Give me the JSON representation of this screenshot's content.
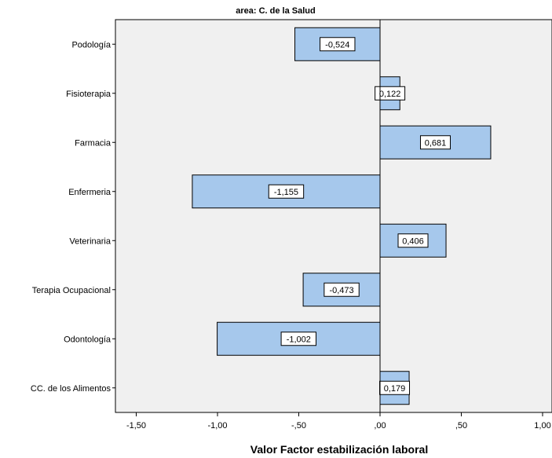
{
  "chart_data": {
    "type": "bar",
    "orientation": "horizontal",
    "title": "area: C. de la Salud",
    "xlabel": "Valor Factor estabilización laboral",
    "ylabel": "",
    "categories": [
      "Podología",
      "Fisioterapia",
      "Farmacia",
      "Enfermeria",
      "Veterinaria",
      "Terapia Ocupacional",
      "Odontología",
      "CC. de los Alimentos"
    ],
    "values": [
      -0.524,
      0.122,
      0.681,
      -1.155,
      0.406,
      -0.473,
      -1.002,
      0.179
    ],
    "value_labels": [
      "-0,524",
      "0,122",
      "0,681",
      "-1,155",
      "0,406",
      "-0,473",
      "-1,002",
      "0,179"
    ],
    "xlim": [
      -1.63,
      1.05
    ],
    "xticks": [
      -1.5,
      -1.0,
      -0.5,
      0.0,
      0.5,
      1.0
    ],
    "xtick_labels": [
      "-1,50",
      "-1,00",
      "-,50",
      ",00",
      ",50",
      "1,00"
    ],
    "grid": false,
    "colors": {
      "bar_fill": "#a6c8ec",
      "bar_stroke": "#000000",
      "plot_background": "#f0f0f0",
      "label_box": "#ffffff"
    }
  }
}
